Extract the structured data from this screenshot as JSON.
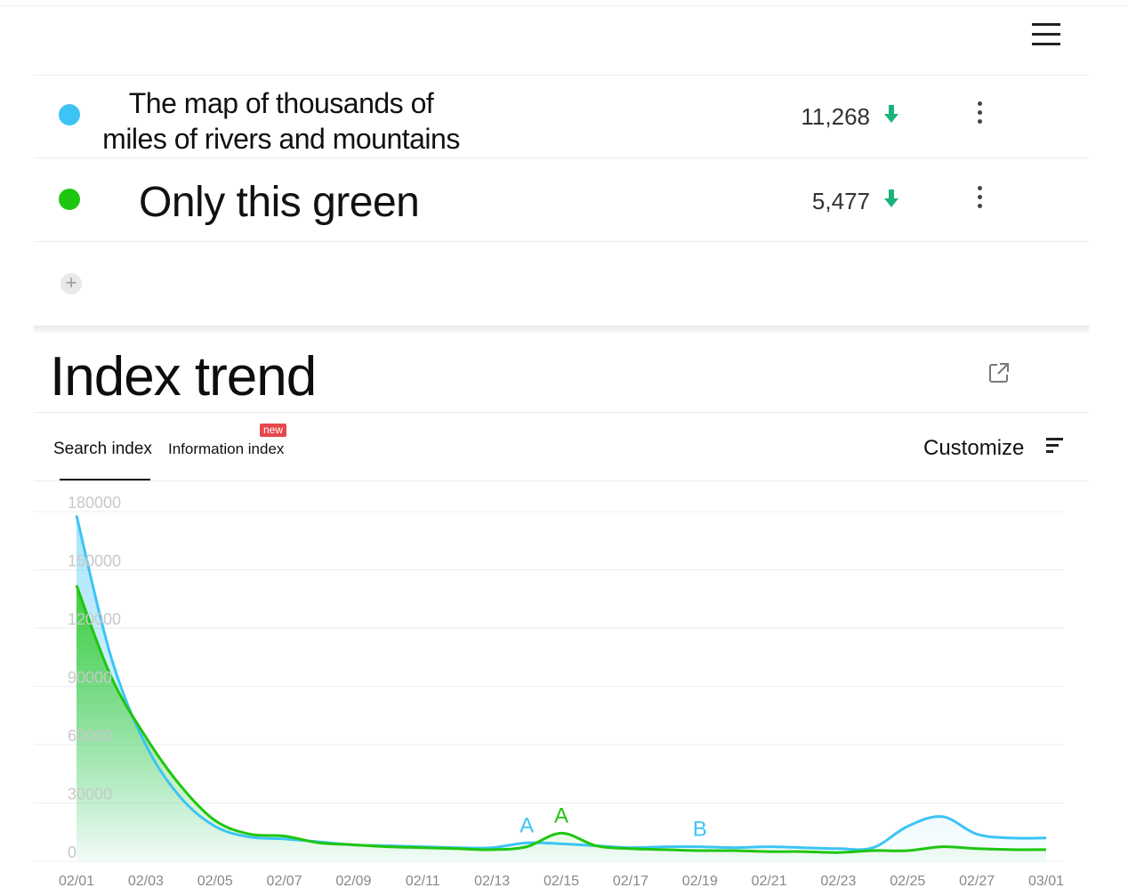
{
  "header": {
    "menu_icon": "hamburger-menu-icon"
  },
  "keywords": [
    {
      "line1": "The map of thousands of",
      "line2": "miles of rivers and mountains",
      "color": "#3cc4f5",
      "count": "11,268",
      "trend": "down"
    },
    {
      "label": "Only this green",
      "color": "#1fc60f",
      "count": "5,477",
      "trend": "down"
    }
  ],
  "add_icon": "plus-icon",
  "section": {
    "title": "Index trend",
    "share_icon": "external-link-icon"
  },
  "tabs": {
    "search": "Search index",
    "information": "Information index",
    "new_badge": "new",
    "customize": "Customize"
  },
  "chart_data": {
    "type": "area",
    "title": "",
    "xlabel": "",
    "ylabel": "",
    "ylim": [
      0,
      180000
    ],
    "yticks": [
      "0",
      "30000",
      "60000",
      "90000",
      "120000",
      "150000",
      "180000"
    ],
    "xticks": [
      "02/01",
      "02/03",
      "02/05",
      "02/07",
      "02/09",
      "02/11",
      "02/13",
      "02/15",
      "02/17",
      "02/19",
      "02/21",
      "02/23",
      "02/25",
      "02/27",
      "03/01"
    ],
    "grid": true,
    "x": [
      "02/01",
      "02/02",
      "02/03",
      "02/04",
      "02/05",
      "02/06",
      "02/07",
      "02/08",
      "02/09",
      "02/10",
      "02/11",
      "02/12",
      "02/13",
      "02/14",
      "02/15",
      "02/16",
      "02/17",
      "02/18",
      "02/19",
      "02/20",
      "02/21",
      "02/22",
      "02/23",
      "02/24",
      "02/25",
      "02/26",
      "02/27",
      "02/28",
      "03/01"
    ],
    "series": [
      {
        "color": "#3cc4f5",
        "values": [
          178000,
          105000,
          60000,
          33000,
          18000,
          12500,
          11500,
          10000,
          8500,
          8000,
          7500,
          7000,
          7000,
          9500,
          9000,
          8000,
          7000,
          7500,
          7500,
          7000,
          7500,
          7000,
          6500,
          7000,
          18000,
          23000,
          14000,
          12000,
          12000
        ]
      },
      {
        "color": "#1fc60f",
        "values": [
          142000,
          95000,
          64000,
          39000,
          21000,
          14000,
          13000,
          9500,
          8500,
          7500,
          7000,
          6500,
          6000,
          7500,
          14500,
          8000,
          6500,
          6000,
          5500,
          5500,
          5000,
          5000,
          4500,
          5500,
          5500,
          7500,
          6500,
          6000,
          6000
        ]
      }
    ],
    "annotations": [
      {
        "text": "A",
        "series": 0,
        "x": "02/14"
      },
      {
        "text": "A",
        "series": 1,
        "x": "02/15"
      },
      {
        "text": "B",
        "series": 0,
        "x": "02/19"
      }
    ]
  }
}
